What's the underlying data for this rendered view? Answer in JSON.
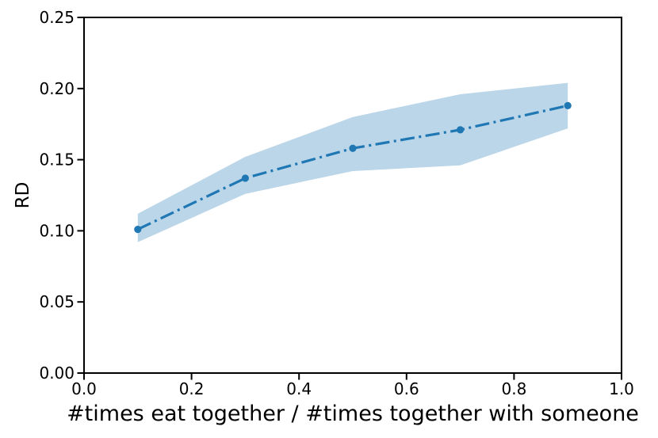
{
  "chart_data": {
    "type": "line",
    "title": "",
    "xlabel": "#times eat together / #times together with someone",
    "ylabel": "RD",
    "xlim": [
      0.0,
      1.0
    ],
    "ylim": [
      0.0,
      0.25
    ],
    "xtick_labels": [
      "0.0",
      "0.2",
      "0.4",
      "0.6",
      "0.8",
      "1.0"
    ],
    "xtick_values": [
      0.0,
      0.2,
      0.4,
      0.6,
      0.8,
      1.0
    ],
    "ytick_labels": [
      "0.00",
      "0.05",
      "0.10",
      "0.15",
      "0.20",
      "0.25"
    ],
    "ytick_values": [
      0.0,
      0.05,
      0.1,
      0.15,
      0.2,
      0.25
    ],
    "grid": false,
    "legend": null,
    "x": [
      0.1,
      0.3,
      0.5,
      0.7,
      0.9
    ],
    "series": [
      {
        "name": "RD",
        "values": [
          0.101,
          0.137,
          0.158,
          0.171,
          0.188
        ],
        "line_style": "dashdot",
        "marker": "circle"
      }
    ],
    "band": {
      "upper": [
        0.112,
        0.152,
        0.18,
        0.196,
        0.204
      ],
      "lower": [
        0.092,
        0.126,
        0.142,
        0.146,
        0.172
      ]
    },
    "colors": {
      "line": "#1f77b4",
      "band": "rgba(31,119,180,0.3)",
      "axis": "#000000"
    }
  }
}
